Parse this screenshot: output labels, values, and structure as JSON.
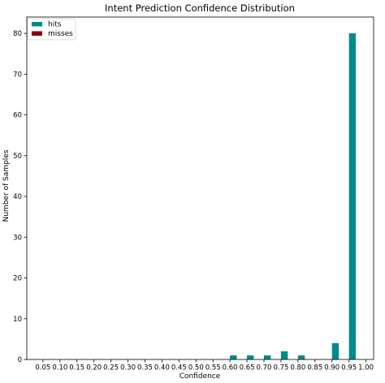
{
  "chart_data": {
    "type": "bar",
    "title": "Intent Prediction Confidence Distribution",
    "xlabel": "Confidence",
    "ylabel": "Number of Samples",
    "categories": [
      "0.05",
      "0.10",
      "0.15",
      "0.20",
      "0.25",
      "0.30",
      "0.35",
      "0.40",
      "0.45",
      "0.50",
      "0.55",
      "0.60",
      "0.65",
      "0.70",
      "0.75",
      "0.80",
      "0.85",
      "0.90",
      "0.95",
      "1.00"
    ],
    "series": [
      {
        "name": "hits",
        "color": "#008b8b",
        "values": [
          0,
          0,
          0,
          0,
          0,
          0,
          0,
          0,
          0,
          0,
          0,
          1,
          1,
          1,
          2,
          1,
          0,
          4,
          80,
          0
        ]
      },
      {
        "name": "misses",
        "color": "#8b0000",
        "values": [
          0,
          0,
          0,
          0,
          0,
          0,
          0,
          0,
          0,
          0,
          0,
          0,
          0,
          0,
          0,
          0,
          0,
          0,
          0,
          0
        ]
      }
    ],
    "ylim": [
      0,
      84
    ],
    "yticks": [
      0,
      10,
      20,
      30,
      40,
      50,
      60,
      70,
      80
    ],
    "grid": false,
    "legend": "top-left"
  }
}
